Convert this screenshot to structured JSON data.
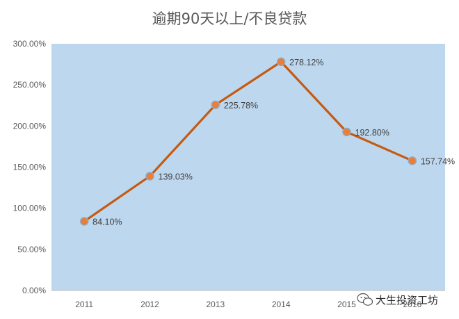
{
  "chart_data": {
    "type": "line",
    "title": "逾期90天以上/不良贷款",
    "xlabel": "",
    "ylabel": "",
    "categories": [
      "2011",
      "2012",
      "2013",
      "2014",
      "2015",
      "2016"
    ],
    "series": [
      {
        "values": [
          84.1,
          139.03,
          225.78,
          278.12,
          192.8,
          157.74
        ],
        "labels": [
          "84.10%",
          "139.03%",
          "225.78%",
          "278.12%",
          "192.80%",
          "157.74%"
        ]
      }
    ],
    "ylim": [
      0,
      300
    ],
    "yticks": [
      0,
      50,
      100,
      150,
      200,
      250,
      300
    ],
    "ytick_labels": [
      "0.00%",
      "50.00%",
      "100.00%",
      "150.00%",
      "200.00%",
      "250.00%",
      "300.00%"
    ],
    "grid": false,
    "legend": "none",
    "colors": {
      "plot_background": "#bdd7ee",
      "line": "#c55a11",
      "marker_fill": "#ed7d31",
      "marker_edge": "#8fa9c8"
    }
  },
  "watermark": {
    "text": "大生投资工坊",
    "icon": "wechat-icon"
  }
}
